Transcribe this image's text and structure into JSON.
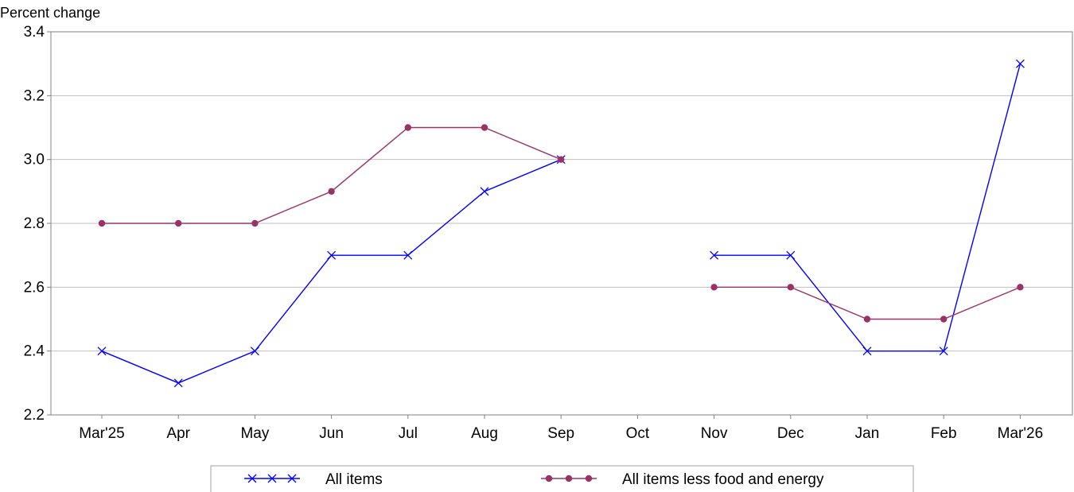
{
  "chart_data": {
    "type": "line",
    "ylabel": "Percent change",
    "ylim": [
      2.2,
      3.4
    ],
    "yticks": [
      "2.2",
      "2.4",
      "2.6",
      "2.8",
      "3.0",
      "3.2",
      "3.4"
    ],
    "categories": [
      "Mar'25",
      "Apr",
      "May",
      "Jun",
      "Jul",
      "Aug",
      "Sep",
      "Oct",
      "Nov",
      "Dec",
      "Jan",
      "Feb",
      "Mar'26"
    ],
    "grid": true,
    "legend_position": "bottom",
    "series": [
      {
        "name": "All items",
        "color": "#0000ff",
        "marker": "x",
        "values": [
          2.4,
          2.3,
          2.4,
          2.7,
          2.7,
          2.9,
          3.0,
          null,
          2.7,
          2.7,
          2.4,
          2.4,
          3.3
        ]
      },
      {
        "name": "All items less food and energy",
        "color": "#993366",
        "marker": "dot",
        "values": [
          2.8,
          2.8,
          2.8,
          2.9,
          3.1,
          3.1,
          3.0,
          null,
          2.6,
          2.6,
          2.5,
          2.5,
          2.6
        ]
      }
    ]
  }
}
